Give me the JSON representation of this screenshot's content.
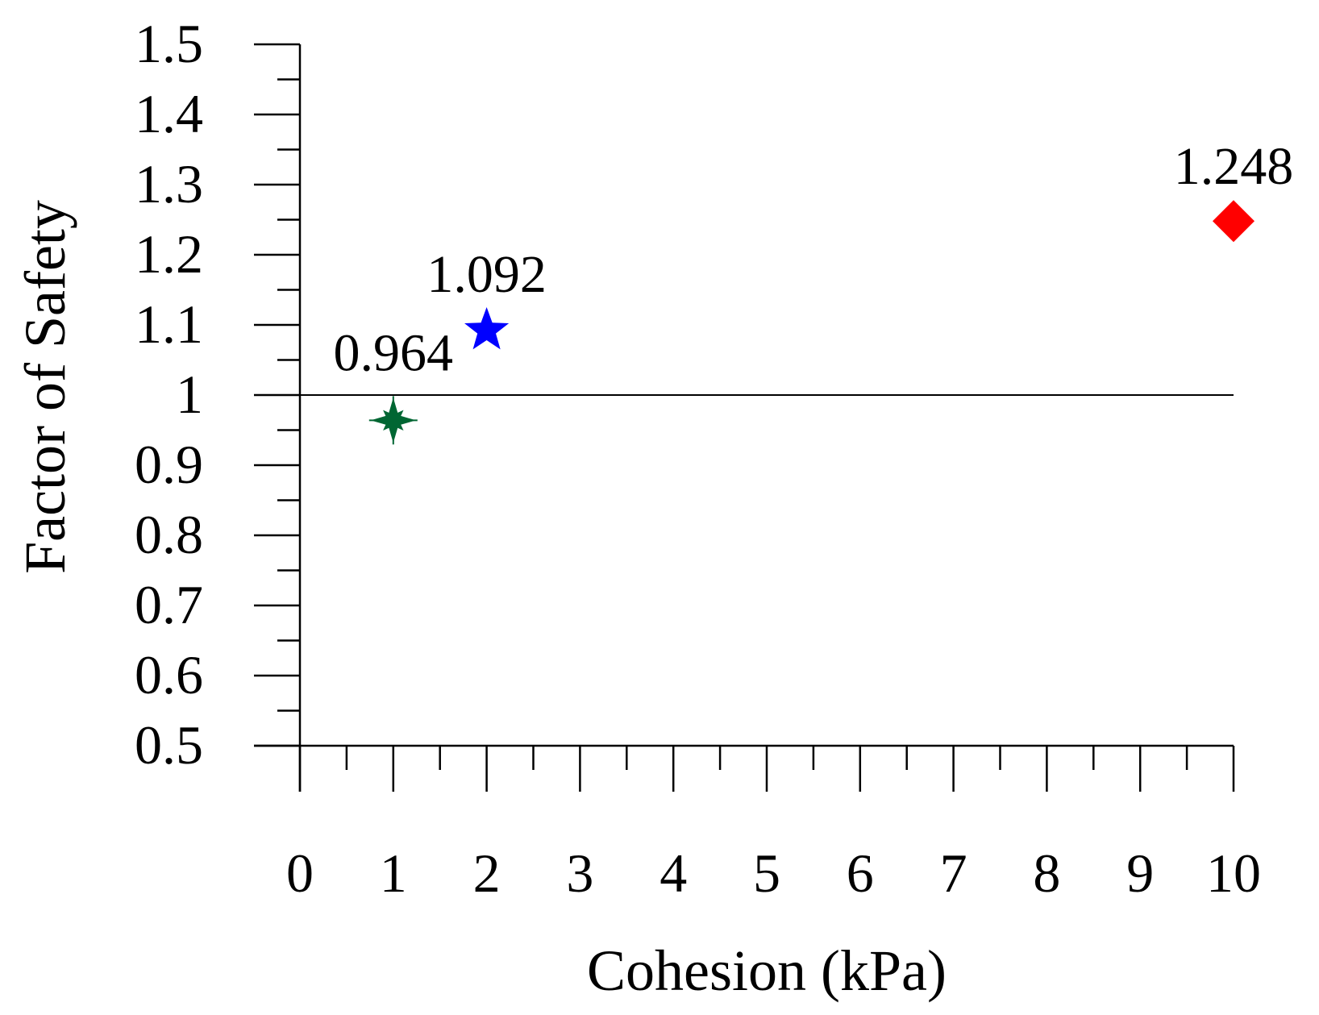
{
  "chart_data": {
    "type": "scatter",
    "title": "",
    "xlabel": "Cohesion (kPa)",
    "ylabel": "Factor of Safety",
    "xlim": [
      0,
      10
    ],
    "ylim": [
      0.5,
      1.5
    ],
    "x_ticks": [
      "0",
      "1",
      "2",
      "3",
      "4",
      "5",
      "6",
      "7",
      "8",
      "9",
      "10"
    ],
    "y_ticks": [
      "0.5",
      "0.6",
      "0.7",
      "0.8",
      "0.9",
      "1",
      "1.1",
      "1.2",
      "1.3",
      "1.4",
      "1.5"
    ],
    "reference_line": {
      "y": 1.0,
      "x_range": [
        0,
        10
      ]
    },
    "grid": false,
    "legend": "none",
    "points": [
      {
        "x": 1,
        "y": 0.964,
        "label": "0.964",
        "marker": "star-burst-icon",
        "color": "#006633"
      },
      {
        "x": 2,
        "y": 1.092,
        "label": "1.092",
        "marker": "star-icon",
        "color": "#0000ff"
      },
      {
        "x": 10,
        "y": 1.248,
        "label": "1.248",
        "marker": "diamond-icon",
        "color": "#ff0000"
      }
    ]
  }
}
